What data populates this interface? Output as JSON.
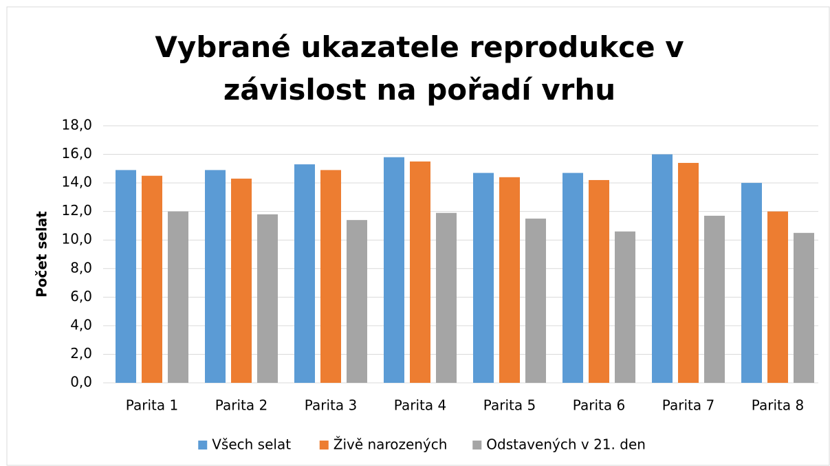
{
  "chart_data": {
    "type": "bar",
    "title": "Vybrané ukazatele reprodukce v závislost na pořadí vrhu",
    "y_label": "Počet selat",
    "categories": [
      "Parita 1",
      "Parita 2",
      "Parita 3",
      "Parita 4",
      "Parita 5",
      "Parita 6",
      "Parita 7",
      "Parita 8"
    ],
    "series": [
      {
        "name": "Všech selat",
        "color": "#5b9bd5",
        "values": [
          14.9,
          14.9,
          15.3,
          15.8,
          14.7,
          14.7,
          16.0,
          14.0
        ]
      },
      {
        "name": "Živě narozených",
        "color": "#ed7d31",
        "values": [
          14.5,
          14.3,
          14.9,
          15.5,
          14.4,
          14.2,
          15.4,
          12.0
        ]
      },
      {
        "name": "Odstavených v 21. den",
        "color": "#a5a5a5",
        "values": [
          12.0,
          11.8,
          11.4,
          11.9,
          11.5,
          10.6,
          11.7,
          10.5
        ]
      }
    ],
    "ylim": [
      0,
      18
    ],
    "yticks": [
      {
        "value": 0,
        "label": "0,0"
      },
      {
        "value": 2,
        "label": "2,0"
      },
      {
        "value": 4,
        "label": "4,0"
      },
      {
        "value": 6,
        "label": "6,0"
      },
      {
        "value": 8,
        "label": "8,0"
      },
      {
        "value": 10,
        "label": "10,0"
      },
      {
        "value": 12,
        "label": "12,0"
      },
      {
        "value": 14,
        "label": "14,0"
      },
      {
        "value": 16,
        "label": "16,0"
      },
      {
        "value": 18,
        "label": "18,0"
      }
    ],
    "grid": true,
    "legend": "bottom"
  }
}
